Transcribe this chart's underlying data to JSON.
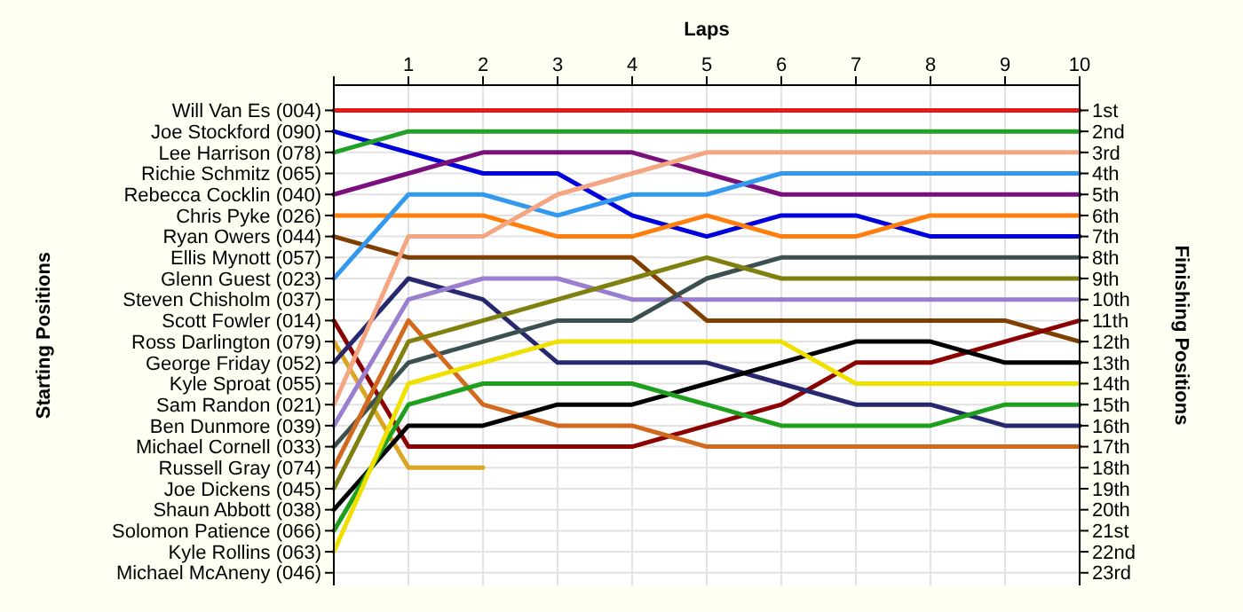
{
  "chart_data": {
    "type": "line",
    "xlabel": "Laps",
    "ylabel": "Finishing Positions",
    "annotations": [
      "Starting Positions"
    ],
    "grid": true,
    "line_style": "solid",
    "marker": "none",
    "x": [
      0,
      1,
      2,
      3,
      4,
      5,
      6,
      7,
      8,
      9,
      10
    ],
    "xlim": [
      0,
      10
    ],
    "xticks": [
      {
        "value": 0,
        "label": null
      },
      1,
      2,
      3,
      4,
      5,
      6,
      7,
      8,
      9,
      10
    ],
    "ylim": [
      23.6,
      -0.2
    ],
    "yticks": [
      {
        "value": 1,
        "label": "1st"
      },
      {
        "value": 2,
        "label": "2nd"
      },
      {
        "value": 3,
        "label": "3rd"
      },
      {
        "value": 4,
        "label": "4th"
      },
      {
        "value": 5,
        "label": "5th"
      },
      {
        "value": 6,
        "label": "6th"
      },
      {
        "value": 7,
        "label": "7th"
      },
      {
        "value": 8,
        "label": "8th"
      },
      {
        "value": 9,
        "label": "9th"
      },
      {
        "value": 10,
        "label": "10th"
      },
      {
        "value": 11,
        "label": "11th"
      },
      {
        "value": 12,
        "label": "12th"
      },
      {
        "value": 13,
        "label": "13th"
      },
      {
        "value": 14,
        "label": "14th"
      },
      {
        "value": 15,
        "label": "15th"
      },
      {
        "value": 16,
        "label": "16th"
      },
      {
        "value": 17,
        "label": "17th"
      },
      {
        "value": 18,
        "label": "18th"
      },
      {
        "value": 19,
        "label": "19th"
      },
      {
        "value": 20,
        "label": "20th"
      },
      {
        "value": 21,
        "label": "21st"
      },
      {
        "value": 22,
        "label": "22nd"
      },
      {
        "value": 23,
        "label": "23rd"
      }
    ],
    "y_categories": [
      "Will Van Es (004)",
      "Joe Stockford (090)",
      "Lee Harrison (078)",
      "Richie Schmitz (065)",
      "Rebecca Cocklin (040)",
      "Chris Pyke (026)",
      "Ryan Owers (044)",
      "Ellis Mynott (057)",
      "Glenn Guest (023)",
      "Steven Chisholm (037)",
      "Scott Fowler (014)",
      "Ross Darlington (079)",
      "George Friday (052)",
      "Kyle Sproat (055)",
      "Sam Randon (021)",
      "Ben Dunmore (039)",
      "Michael Cornell (033)",
      "Russell Gray (074)",
      "Joe Dickens (045)",
      "Shaun Abbott (038)",
      "Solomon Patience (066)",
      "Kyle Rollins (063)",
      "Michael McAneny (046)"
    ],
    "series": [
      {
        "color": "#e31a1c",
        "values": [
          1,
          1,
          1,
          1,
          1,
          1,
          1,
          1,
          1,
          1,
          1
        ]
      },
      {
        "color": "#0000dd",
        "values": [
          2,
          3,
          4,
          4,
          6,
          7,
          6,
          6,
          7,
          7,
          7
        ]
      },
      {
        "color": "#22a02a",
        "values": [
          3,
          2,
          2,
          2,
          2,
          2,
          2,
          2,
          2,
          2,
          2
        ]
      },
      {
        "color": "#7b0f7b",
        "values": [
          5,
          4,
          3,
          3,
          3,
          4,
          5,
          5,
          5,
          5,
          5
        ]
      },
      {
        "color": "#ff7f0e",
        "values": [
          6,
          6,
          6,
          7,
          7,
          6,
          7,
          7,
          6,
          6,
          6
        ]
      },
      {
        "color": "#7f3f00",
        "values": [
          7,
          8,
          8,
          8,
          8,
          11,
          11,
          11,
          11,
          11,
          12
        ]
      },
      {
        "color": "#3399ee",
        "values": [
          9,
          5,
          5,
          6,
          5,
          5,
          4,
          4,
          4,
          4,
          4
        ]
      },
      {
        "color": "#8b0000",
        "values": [
          11,
          17,
          17,
          17,
          17,
          16,
          15,
          13,
          13,
          12,
          11
        ]
      },
      {
        "color": "#daa520",
        "values": [
          12,
          18,
          18,
          null,
          null,
          null,
          null,
          null,
          null,
          null,
          null
        ]
      },
      {
        "color": "#28286e",
        "values": [
          13,
          9,
          10,
          13,
          13,
          13,
          14,
          15,
          15,
          16,
          16
        ]
      },
      {
        "color": "#f4a582",
        "values": [
          15,
          7,
          7,
          5,
          4,
          3,
          3,
          3,
          3,
          3,
          3
        ]
      },
      {
        "color": "#9a7fd1",
        "values": [
          16,
          10,
          9,
          9,
          10,
          10,
          10,
          10,
          10,
          10,
          10
        ]
      },
      {
        "color": "#3c5050",
        "values": [
          17,
          13,
          12,
          11,
          11,
          9,
          8,
          8,
          8,
          8,
          8
        ]
      },
      {
        "color": "#d2691e",
        "values": [
          18,
          11,
          15,
          16,
          16,
          17,
          17,
          17,
          17,
          17,
          17
        ]
      },
      {
        "color": "#808010",
        "values": [
          19,
          12,
          11,
          10,
          9,
          8,
          9,
          9,
          9,
          9,
          9
        ]
      },
      {
        "color": "#000000",
        "values": [
          20,
          16,
          16,
          15,
          15,
          14,
          13,
          12,
          12,
          13,
          13
        ]
      },
      {
        "color": "#1ea01e",
        "values": [
          21,
          15,
          14,
          14,
          14,
          15,
          16,
          16,
          16,
          15,
          15
        ]
      },
      {
        "color": "#f0e000",
        "values": [
          22,
          14,
          13,
          12,
          12,
          12,
          12,
          14,
          14,
          14,
          14
        ]
      }
    ]
  }
}
